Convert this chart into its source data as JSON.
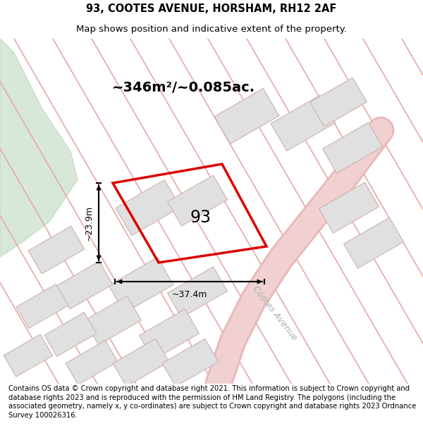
{
  "title": "93, COOTES AVENUE, HORSHAM, RH12 2AF",
  "subtitle": "Map shows position and indicative extent of the property.",
  "area_text": "~346m²/~0.085ac.",
  "dimension_width": "~37.4m",
  "dimension_height": "~23.9m",
  "property_label": "93",
  "road_label": "Cootes Avenue",
  "footer": "Contains OS data © Crown copyright and database right 2021. This information is subject to Crown copyright and database rights 2023 and is reproduced with the permission of HM Land Registry. The polygons (including the associated geometry, namely x, y co-ordinates) are subject to Crown copyright and database rights 2023 Ordnance Survey 100026316.",
  "bg_color": "#f7f7f7",
  "map_bg": "#f7f7f7",
  "highlight_color": "#dd0000",
  "road_line_color": "#e8a8a8",
  "road_border_color": "#e0b8b8",
  "building_fill": "#e0e0e0",
  "building_edge": "#d0b0b0",
  "green_fill": "#d8e8d8",
  "green_edge": "#c0d8c0",
  "title_fontsize": 10.5,
  "subtitle_fontsize": 9.5,
  "footer_fontsize": 7.2,
  "area_fontsize": 14,
  "label_fontsize": 17,
  "dim_fontsize": 9
}
